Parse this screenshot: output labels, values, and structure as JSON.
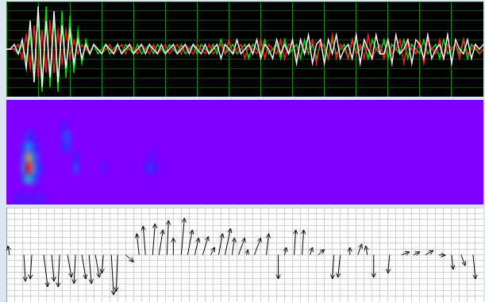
{
  "chart_data": [
    {
      "type": "line",
      "x": [
        0,
        1,
        2,
        3,
        4,
        5,
        6,
        7,
        8,
        9,
        10,
        11,
        12,
        13,
        14,
        15,
        16,
        17,
        18,
        19,
        20,
        21,
        22,
        23,
        24,
        25,
        26,
        27,
        28,
        29,
        30,
        31,
        32,
        33,
        34,
        35,
        36,
        37,
        38,
        39,
        40,
        41,
        42,
        43,
        44,
        45,
        46,
        47,
        48,
        49,
        50,
        51,
        52,
        53,
        54,
        55,
        56,
        57,
        58,
        59,
        60,
        61,
        62,
        63,
        64,
        65,
        66,
        67,
        68,
        69,
        70,
        71,
        72,
        73,
        74,
        75,
        76,
        77,
        78,
        79,
        80,
        81,
        82,
        83,
        84,
        85,
        86,
        87,
        88,
        89,
        90,
        91,
        92,
        93,
        94,
        95,
        96,
        97,
        98,
        99,
        100,
        101,
        102,
        103,
        104,
        105,
        106,
        107,
        108,
        109,
        110,
        111,
        112,
        113,
        114,
        115,
        116,
        117,
        118,
        119,
        120
      ],
      "series": [
        {
          "color": "#ffffff",
          "values": [
            0,
            0,
            1,
            -1,
            2,
            -4,
            6,
            -7,
            9,
            -8,
            6,
            -6,
            8,
            -7,
            5,
            -4,
            4,
            -3,
            2,
            -2,
            1,
            -1,
            1,
            0,
            -1,
            1,
            0,
            -1,
            1,
            -1,
            0,
            1,
            -1,
            0,
            1,
            -1,
            1,
            0,
            -1,
            1,
            -1,
            0,
            1,
            -1,
            0,
            1,
            -1,
            1,
            0,
            -1,
            1,
            -1,
            0,
            1,
            -2,
            1,
            0,
            -1,
            2,
            -1,
            0,
            1,
            -1,
            2,
            -2,
            1,
            0,
            -2,
            2,
            -1,
            1,
            -1,
            2,
            -3,
            2,
            -1,
            3,
            -3,
            1,
            2,
            -3,
            2,
            -1,
            3,
            -2,
            0,
            1,
            -2,
            3,
            -3,
            2,
            0,
            -2,
            3,
            -1,
            -1,
            2,
            -3,
            3,
            -1,
            0,
            2,
            -3,
            2,
            1,
            -2,
            3,
            -2,
            0,
            1,
            -2,
            3,
            -3,
            2,
            0,
            -1,
            2,
            -2,
            1,
            0,
            1
          ]
        },
        {
          "color": "#ff2020",
          "values": [
            0,
            0,
            0,
            1,
            -2,
            3,
            -4,
            5,
            -6,
            4,
            -5,
            6,
            -5,
            4,
            -3,
            4,
            -2,
            2,
            -1,
            1,
            0,
            -1,
            1,
            0,
            -1,
            0,
            1,
            -1,
            0,
            1,
            -1,
            1,
            0,
            -1,
            1,
            0,
            -1,
            1,
            -1,
            0,
            1,
            -1,
            0,
            1,
            -1,
            1,
            0,
            -1,
            1,
            0,
            -1,
            1,
            -1,
            0,
            1,
            -1,
            2,
            -1,
            0,
            1,
            -2,
            1,
            0,
            -1,
            2,
            -2,
            1,
            0,
            -1,
            2,
            -2,
            1,
            1,
            -2,
            2,
            -1,
            0,
            2,
            -3,
            2,
            0,
            -2,
            3,
            -2,
            1,
            0,
            -2,
            2,
            -1,
            1,
            -2,
            3,
            -2,
            0,
            1,
            -2,
            2,
            -1,
            0,
            2,
            -3,
            2,
            0,
            -1,
            2,
            -3,
            2,
            0,
            -1,
            2,
            -2,
            1,
            0,
            1,
            -2,
            2,
            -1,
            0,
            1,
            -1,
            0
          ]
        },
        {
          "color": "#00e000",
          "values": [
            0,
            0,
            0,
            -1,
            1,
            -2,
            3,
            -5,
            7,
            -9,
            9,
            -8,
            7,
            -9,
            8,
            -6,
            7,
            -5,
            4,
            -3,
            2,
            -1,
            1,
            -1,
            0,
            1,
            -1,
            0,
            1,
            -1,
            1,
            0,
            -1,
            1,
            -1,
            0,
            1,
            -1,
            1,
            0,
            -1,
            1,
            0,
            -1,
            1,
            -1,
            0,
            1,
            -1,
            1,
            0,
            -1,
            1,
            -1,
            2,
            -1,
            0,
            1,
            -1,
            0,
            1,
            -2,
            1,
            0,
            -1,
            2,
            -1,
            0,
            1,
            -2,
            2,
            -1,
            0,
            1,
            -2,
            2,
            -1,
            1,
            -2,
            1,
            1,
            -2,
            2,
            -1,
            0,
            1,
            -2,
            2,
            -1,
            0,
            1,
            -2,
            2,
            0,
            -1,
            2,
            -2,
            1,
            0,
            -1,
            2,
            -2,
            1,
            0,
            -1,
            2,
            -1,
            0,
            1,
            -2,
            2,
            -1,
            0,
            1,
            -1,
            2,
            -2,
            1,
            0,
            -1,
            0
          ]
        }
      ],
      "xlim": [
        0,
        120
      ],
      "xticks": [
        0,
        8,
        16,
        24,
        32,
        40,
        48,
        56,
        64,
        72,
        80,
        88,
        96,
        104,
        112,
        120
      ],
      "ylim": [
        -10,
        10
      ],
      "yticks": [
        -10,
        -8,
        -6,
        -4,
        -2,
        0,
        2,
        4,
        6,
        8,
        10
      ],
      "grid": true,
      "tick_labels": false
    },
    {
      "type": "heatmap",
      "cells": {
        "x": [
          4,
          4,
          4,
          4,
          5,
          5,
          5,
          5,
          5,
          6,
          6,
          6,
          6,
          6,
          7,
          7,
          7,
          7,
          8,
          14,
          14,
          14,
          15,
          15,
          17,
          17,
          24,
          35,
          36,
          36,
          37,
          2,
          3,
          4,
          5,
          6,
          7,
          8,
          9
        ],
        "y": [
          2,
          3,
          4,
          5,
          2,
          3,
          4,
          5,
          6,
          2,
          3,
          4,
          5,
          6,
          2,
          3,
          4,
          5,
          3,
          5,
          6,
          7,
          5,
          6,
          3,
          4,
          3,
          3,
          3,
          4,
          3,
          0,
          0,
          0,
          0,
          0,
          0,
          0,
          0
        ],
        "values": [
          0.3,
          0.45,
          0.35,
          0.25,
          0.55,
          1,
          0.8,
          0.45,
          0.25,
          0.45,
          0.85,
          0.6,
          0.35,
          0.2,
          0.25,
          0.4,
          0.3,
          0.2,
          0.2,
          0.2,
          0.25,
          0.15,
          0.25,
          0.3,
          0.3,
          0.2,
          0.15,
          0.2,
          0.25,
          0.15,
          0.15,
          0.12,
          0.12,
          0.12,
          0.12,
          0.12,
          0.12,
          0.12,
          0.12
        ],
        "cell_width": 1,
        "cell_height": 1
      },
      "cell_range": [
        0,
        1
      ],
      "xlim": [
        0,
        120
      ],
      "ylim": [
        0,
        10
      ],
      "grid": false,
      "tick_labels": false
    },
    {
      "type": "quiver",
      "baseline": 0,
      "x": [
        0.8,
        4.4,
        6.4,
        9.4,
        11.4,
        13.4,
        15.4,
        17.4,
        19,
        20.8,
        22.4,
        24.4,
        26.4,
        28,
        30,
        33.4,
        35,
        36.8,
        38.4,
        40.4,
        42,
        44,
        45.6,
        47.4,
        49.4,
        51.4,
        53.4,
        55,
        56.8,
        58.4,
        60.4,
        62.4,
        65.4,
        68.4,
        70,
        72.4,
        74.4,
        76.4,
        78.4,
        82.4,
        84,
        86.4,
        88.4,
        90.8,
        92.4,
        96.4,
        99.4,
        102.4,
        105.4,
        108.8,
        112,
        114.4,
        117.4
      ],
      "x_end": [
        0.4,
        4.8,
        6,
        10.4,
        12,
        13,
        16.4,
        17,
        20,
        21.4,
        23.4,
        24,
        27,
        27.6,
        32,
        32.8,
        34.4,
        37.4,
        39.4,
        40.8,
        42,
        44.8,
        46.8,
        48.4,
        50.8,
        52.4,
        54.4,
        56.4,
        57.4,
        60,
        60.8,
        64,
        66,
        68.4,
        70.4,
        72.8,
        74.8,
        77,
        80,
        82,
        83.4,
        86.4,
        89.4,
        90.4,
        92.4,
        96,
        101.4,
        104,
        107.4,
        110.4,
        112.4,
        115.4,
        118
      ],
      "y_end": [
        0.19,
        -0.56,
        -0.51,
        -0.68,
        -0.56,
        -0.68,
        -0.48,
        -0.61,
        -0.51,
        -0.61,
        -0.48,
        -0.39,
        -0.85,
        -0.78,
        -0.15,
        0.45,
        0.61,
        0.66,
        0.53,
        0.73,
        0.36,
        0.78,
        0.53,
        0.36,
        0.39,
        0.16,
        0.45,
        0.56,
        0.36,
        0.36,
        0.11,
        0.36,
        0.45,
        -0.51,
        0.16,
        0.53,
        0.53,
        0.16,
        0.11,
        -0.51,
        -0.48,
        0.16,
        0.23,
        0.19,
        -0.48,
        -0.39,
        0.06,
        0.06,
        0.09,
        -0.01,
        -0.31,
        -0.23,
        -0.51
      ],
      "color": "#000000",
      "xlim": [
        0,
        120
      ],
      "xticks": [
        0,
        2,
        4,
        6,
        8,
        10,
        12,
        14,
        16,
        18,
        20,
        22,
        24,
        26,
        28,
        30,
        32,
        34,
        36,
        38,
        40,
        42,
        44,
        46,
        48,
        50,
        52,
        54,
        56,
        58,
        60,
        62,
        64,
        66,
        68,
        70,
        72,
        74,
        76,
        78,
        80,
        82,
        84,
        86,
        88,
        90,
        92,
        94,
        96,
        98,
        100,
        102,
        104,
        106,
        108,
        110,
        112,
        114,
        116,
        118,
        120
      ],
      "ylim": [
        -1,
        1
      ],
      "yticks": [
        -1,
        -0.875,
        -0.75,
        -0.625,
        -0.5,
        -0.375,
        -0.25,
        -0.125,
        0,
        0.125,
        0.25,
        0.375,
        0.5,
        0.625,
        0.75,
        0.875,
        1
      ],
      "grid": true,
      "tick_labels": false
    }
  ]
}
